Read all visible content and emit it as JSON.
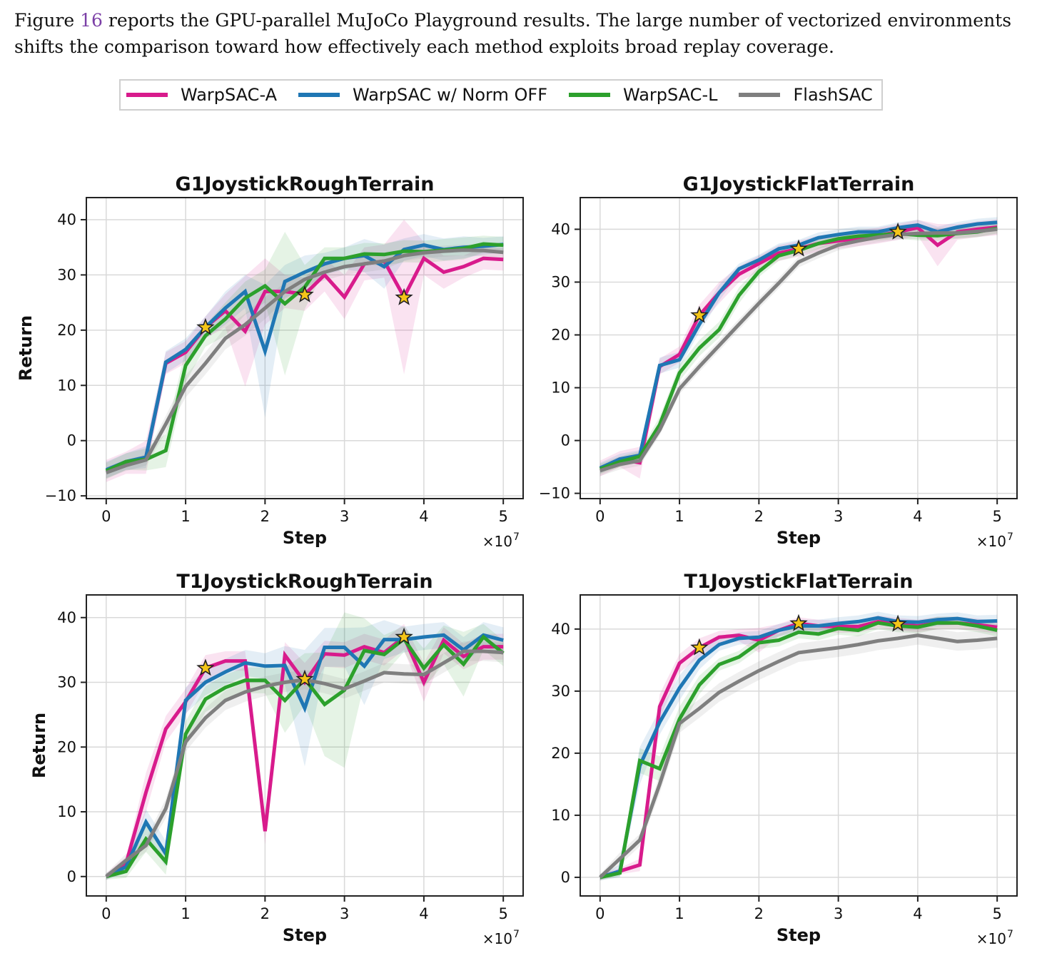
{
  "caption": {
    "before": "Figure ",
    "ref": "16",
    "after": " reports the GPU-parallel MuJoCo Playground results. The large number of vectorized environments shifts the comparison toward how effectively each method exploits broad replay coverage."
  },
  "legend": [
    {
      "name": "WarpSAC-A",
      "color": "#d81b8c"
    },
    {
      "name": "WarpSAC w/ Norm OFF",
      "color": "#1f77b4"
    },
    {
      "name": "WarpSAC-L",
      "color": "#2ca02c"
    },
    {
      "name": "FlashSAC",
      "color": "#7f7f7f"
    }
  ],
  "star_color": "#f5c518",
  "chart_data": [
    {
      "type": "line",
      "title": "G1JoystickRoughTerrain",
      "xlabel": "Step",
      "ylabel": "Return",
      "x_multiplier_label": "×10",
      "x_multiplier_exp": "7",
      "xlim": [
        -0.25,
        5.25
      ],
      "ylim": [
        -10.5,
        44
      ],
      "xticks": [
        0,
        1,
        2,
        3,
        4,
        5
      ],
      "yticks": [
        -10,
        0,
        10,
        20,
        30,
        40
      ],
      "grid": true,
      "x": [
        0,
        0.25,
        0.5,
        0.75,
        1.0,
        1.25,
        1.5,
        1.75,
        2.0,
        2.25,
        2.5,
        2.75,
        3.0,
        3.25,
        3.5,
        3.75,
        4.0,
        4.25,
        4.5,
        4.75,
        5.0
      ],
      "series": [
        {
          "name": "WarpSAC-A",
          "values": [
            -5.5,
            -4.0,
            -3.0,
            14.0,
            16.0,
            20.5,
            23.5,
            19.8,
            27.0,
            27.0,
            26.5,
            30.0,
            26.0,
            32.0,
            32.5,
            26.0,
            33.0,
            30.5,
            31.5,
            33.0,
            32.8
          ],
          "band": [
            2,
            2,
            3,
            2,
            2,
            2,
            3,
            10,
            6,
            3,
            3,
            3,
            4,
            3,
            3,
            14,
            3,
            3,
            2,
            2,
            2
          ]
        },
        {
          "name": "WarpSAC w/ Norm OFF",
          "values": [
            -5.3,
            -3.8,
            -3.0,
            14.2,
            16.5,
            20.5,
            24.0,
            27.0,
            16.2,
            28.8,
            30.5,
            32.0,
            33.0,
            33.5,
            31.5,
            34.6,
            35.4,
            34.6,
            35.0,
            35.2,
            35.5
          ],
          "band": [
            1.5,
            1.5,
            2,
            2,
            2,
            2,
            3,
            3,
            12,
            3,
            3,
            2,
            2,
            3,
            4,
            2,
            2,
            2,
            2,
            1.5,
            1.5
          ]
        },
        {
          "name": "WarpSAC-L",
          "values": [
            -5.5,
            -3.8,
            -3.4,
            -1.8,
            13.6,
            19.0,
            22.0,
            25.8,
            28.0,
            24.8,
            27.8,
            33.0,
            33.0,
            33.8,
            33.7,
            34.3,
            34.2,
            34.5,
            34.8,
            35.6,
            35.4
          ],
          "band": [
            1.5,
            1.5,
            2,
            3,
            3,
            2,
            3,
            3,
            3,
            13,
            4,
            2,
            2,
            2,
            2,
            2,
            2,
            2,
            2,
            1.5,
            1.5
          ]
        },
        {
          "name": "FlashSAC",
          "values": [
            -5.8,
            -4.5,
            -3.5,
            3.0,
            9.8,
            14.0,
            18.5,
            21.0,
            24.0,
            27.0,
            29.2,
            30.5,
            31.5,
            32.0,
            32.5,
            33.5,
            34.0,
            34.3,
            34.5,
            34.4,
            34.1
          ],
          "band": [
            1,
            1,
            1,
            1.5,
            2,
            2,
            2,
            2,
            2,
            1.5,
            1.5,
            1.5,
            1.5,
            1.5,
            1.5,
            1,
            1,
            1,
            1,
            1,
            1
          ]
        }
      ],
      "stars": [
        {
          "x": 1.25,
          "y": 20.5
        },
        {
          "x": 2.5,
          "y": 26.4
        },
        {
          "x": 3.75,
          "y": 25.9
        }
      ]
    },
    {
      "type": "line",
      "title": "G1JoystickFlatTerrain",
      "xlabel": "Step",
      "ylabel": "",
      "x_multiplier_label": "×10",
      "x_multiplier_exp": "7",
      "xlim": [
        -0.25,
        5.25
      ],
      "ylim": [
        -11,
        46
      ],
      "xticks": [
        0,
        1,
        2,
        3,
        4,
        5
      ],
      "yticks": [
        -10,
        0,
        10,
        20,
        30,
        40
      ],
      "grid": true,
      "x": [
        0,
        0.25,
        0.5,
        0.75,
        1.0,
        1.25,
        1.5,
        1.75,
        2.0,
        2.25,
        2.5,
        2.75,
        3.0,
        3.25,
        3.5,
        3.75,
        4.0,
        4.25,
        4.5,
        4.75,
        5.0
      ],
      "series": [
        {
          "name": "WarpSAC-A",
          "values": [
            -5.3,
            -3.5,
            -4.2,
            14.0,
            16.3,
            23.7,
            28.0,
            31.5,
            33.5,
            35.5,
            36.3,
            37.3,
            37.8,
            38.3,
            38.8,
            39.5,
            40.3,
            37.0,
            39.5,
            40.0,
            40.4
          ],
          "band": [
            1.5,
            1.5,
            3,
            1.5,
            1.5,
            2,
            2,
            1.5,
            1.5,
            1.5,
            1.5,
            1.5,
            1.5,
            1.5,
            1.5,
            1.5,
            1.5,
            4,
            1.5,
            1.5,
            1.5
          ]
        },
        {
          "name": "WarpSAC w/ Norm OFF",
          "values": [
            -5.2,
            -3.5,
            -2.8,
            14.2,
            15.3,
            22.0,
            28.0,
            32.5,
            34.2,
            36.3,
            37.0,
            38.4,
            39.0,
            39.5,
            39.5,
            40.3,
            40.8,
            39.5,
            40.4,
            41.0,
            41.3
          ],
          "band": [
            1,
            1,
            1,
            1.5,
            1.5,
            1.5,
            1.5,
            1,
            1,
            1,
            1,
            1,
            1,
            1,
            1,
            1,
            1,
            1,
            1,
            1,
            1
          ]
        },
        {
          "name": "WarpSAC-L",
          "values": [
            -5.4,
            -4.0,
            -3.0,
            3.0,
            12.8,
            17.5,
            21.0,
            27.5,
            32.0,
            35.0,
            36.0,
            37.3,
            38.2,
            38.7,
            38.9,
            39.2,
            38.9,
            38.8,
            39.2,
            39.5,
            40.2
          ],
          "band": [
            1,
            1,
            1,
            1.5,
            1.5,
            1.5,
            1.5,
            1.5,
            1,
            1,
            1,
            1,
            1,
            1,
            1,
            1,
            1,
            1,
            1,
            1,
            1
          ]
        },
        {
          "name": "FlashSAC",
          "values": [
            -5.7,
            -4.5,
            -3.8,
            2.0,
            9.8,
            14.0,
            18.0,
            22.0,
            26.0,
            29.8,
            33.8,
            35.5,
            37.0,
            37.8,
            38.5,
            39.0,
            39.2,
            39.3,
            39.3,
            39.6,
            40.0
          ],
          "band": [
            1,
            1,
            1,
            1,
            1,
            1,
            1,
            1,
            1,
            1,
            1,
            1,
            1,
            1,
            1,
            1,
            1,
            1,
            1,
            1,
            1
          ]
        }
      ],
      "stars": [
        {
          "x": 1.25,
          "y": 23.7
        },
        {
          "x": 2.5,
          "y": 36.3
        },
        {
          "x": 3.75,
          "y": 39.5
        }
      ]
    },
    {
      "type": "line",
      "title": "T1JoystickRoughTerrain",
      "xlabel": "Step",
      "ylabel": "Return",
      "x_multiplier_label": "×10",
      "x_multiplier_exp": "7",
      "xlim": [
        -0.25,
        5.25
      ],
      "ylim": [
        -3,
        43.5
      ],
      "xticks": [
        0,
        1,
        2,
        3,
        4,
        5
      ],
      "yticks": [
        0,
        10,
        20,
        30,
        40
      ],
      "grid": true,
      "x": [
        0,
        0.25,
        0.5,
        0.75,
        1.0,
        1.25,
        1.5,
        1.75,
        2.0,
        2.25,
        2.5,
        2.75,
        3.0,
        3.25,
        3.5,
        3.75,
        4.0,
        4.25,
        4.5,
        4.75,
        5.0
      ],
      "series": [
        {
          "name": "WarpSAC-A",
          "values": [
            0,
            2.0,
            13.0,
            22.8,
            27.0,
            32.2,
            33.3,
            33.3,
            7.0,
            34.2,
            30.0,
            34.4,
            34.2,
            35.5,
            34.6,
            37.0,
            30.0,
            36.5,
            34.0,
            35.5,
            35.5
          ],
          "band": [
            0.5,
            1,
            3,
            2,
            2,
            2,
            1.5,
            1.5,
            2,
            2,
            3,
            2,
            2,
            2,
            2,
            2,
            3,
            2,
            2,
            2,
            2
          ]
        },
        {
          "name": "WarpSAC w/ Norm OFF",
          "values": [
            0,
            1.5,
            8.4,
            3.5,
            27.2,
            30.0,
            31.6,
            33.0,
            32.5,
            32.6,
            26.0,
            35.4,
            35.4,
            32.5,
            36.6,
            36.6,
            37.0,
            37.3,
            35.0,
            37.3,
            36.5
          ],
          "band": [
            0.5,
            1,
            2,
            2,
            2,
            2,
            2,
            2,
            2,
            3,
            9,
            3,
            3,
            6,
            3,
            2,
            2,
            2,
            2,
            2,
            2
          ]
        },
        {
          "name": "WarpSAC-L",
          "values": [
            0,
            0.8,
            5.8,
            2.3,
            22.0,
            27.4,
            29.2,
            30.3,
            30.3,
            27.2,
            30.5,
            26.6,
            28.8,
            34.9,
            34.3,
            36.7,
            32.2,
            35.8,
            32.8,
            37.0,
            34.5
          ],
          "band": [
            0.5,
            1,
            2,
            2,
            2,
            2,
            2,
            2,
            2,
            5,
            4,
            8,
            12,
            5,
            3,
            2,
            3,
            3,
            5,
            2,
            2
          ]
        },
        {
          "name": "FlashSAC",
          "values": [
            0,
            2.5,
            4.8,
            10.5,
            20.8,
            24.5,
            27.2,
            28.5,
            29.4,
            30.0,
            30.4,
            29.8,
            29.0,
            30.2,
            31.5,
            31.3,
            31.2,
            33.0,
            34.8,
            34.8,
            34.6
          ],
          "band": [
            0.5,
            1,
            1,
            1.5,
            1.5,
            1.5,
            1.5,
            1.5,
            1.5,
            1.5,
            1.5,
            1.5,
            1.5,
            1.5,
            1.5,
            1.5,
            1.5,
            1.5,
            1.5,
            1.5,
            1.5
          ]
        }
      ],
      "stars": [
        {
          "x": 1.25,
          "y": 32.2
        },
        {
          "x": 2.5,
          "y": 30.5
        },
        {
          "x": 3.75,
          "y": 37.0
        }
      ]
    },
    {
      "type": "line",
      "title": "T1JoystickFlatTerrain",
      "xlabel": "Step",
      "ylabel": "",
      "x_multiplier_label": "×10",
      "x_multiplier_exp": "7",
      "xlim": [
        -0.25,
        5.25
      ],
      "ylim": [
        -3,
        45.5
      ],
      "xticks": [
        0,
        1,
        2,
        3,
        4,
        5
      ],
      "yticks": [
        0,
        10,
        20,
        30,
        40
      ],
      "grid": true,
      "x": [
        0,
        0.25,
        0.5,
        0.75,
        1.0,
        1.25,
        1.5,
        1.75,
        2.0,
        2.25,
        2.5,
        2.75,
        3.0,
        3.25,
        3.5,
        3.75,
        4.0,
        4.25,
        4.5,
        4.75,
        5.0
      ],
      "series": [
        {
          "name": "WarpSAC-A",
          "values": [
            0,
            1.0,
            2.0,
            27.5,
            34.5,
            37.0,
            38.7,
            39.0,
            38.2,
            39.8,
            40.9,
            40.5,
            40.4,
            40.4,
            41.2,
            40.8,
            40.5,
            41.0,
            41.0,
            40.7,
            40.3
          ],
          "band": [
            0.5,
            0.5,
            1,
            2,
            1.5,
            1.5,
            1,
            1,
            2,
            1,
            1,
            1,
            1,
            1,
            1,
            1,
            1,
            1,
            1,
            1,
            1
          ]
        },
        {
          "name": "WarpSAC w/ Norm OFF",
          "values": [
            0,
            1.0,
            18.0,
            25.0,
            30.5,
            35.0,
            37.5,
            38.5,
            38.7,
            39.8,
            40.5,
            40.5,
            40.9,
            41.2,
            41.8,
            41.2,
            41.1,
            41.5,
            41.7,
            41.2,
            41.3
          ],
          "band": [
            0.5,
            1,
            3,
            2,
            2,
            1.5,
            1,
            1,
            1,
            1,
            1,
            1,
            1,
            1,
            1,
            1,
            1,
            1,
            1,
            1,
            1
          ]
        },
        {
          "name": "WarpSAC-L",
          "values": [
            0,
            0.7,
            18.8,
            17.5,
            25.5,
            31.0,
            34.3,
            35.5,
            37.8,
            38.2,
            39.5,
            39.2,
            40.1,
            39.8,
            41.0,
            40.5,
            40.3,
            41.0,
            41.0,
            40.5,
            39.8
          ],
          "band": [
            0.5,
            0.5,
            2,
            2,
            2,
            1.5,
            1,
            1,
            1,
            1,
            1,
            1,
            1,
            1,
            1,
            1,
            1,
            1,
            1,
            1,
            1
          ]
        },
        {
          "name": "FlashSAC",
          "values": [
            0,
            3.0,
            6.0,
            15.0,
            24.8,
            27.2,
            29.8,
            31.6,
            33.3,
            34.8,
            36.2,
            36.6,
            37.0,
            37.5,
            38.1,
            38.5,
            39.0,
            38.5,
            38.0,
            38.2,
            38.5
          ],
          "band": [
            0.5,
            1,
            1,
            1.5,
            1.5,
            1.5,
            1.5,
            1.5,
            1.5,
            1.5,
            1.5,
            1.5,
            1.5,
            1.5,
            1.5,
            1.5,
            1.5,
            1.5,
            1.5,
            1.5,
            1.5
          ]
        }
      ],
      "stars": [
        {
          "x": 1.25,
          "y": 37.0
        },
        {
          "x": 2.5,
          "y": 40.9
        },
        {
          "x": 3.75,
          "y": 40.8
        }
      ]
    }
  ]
}
